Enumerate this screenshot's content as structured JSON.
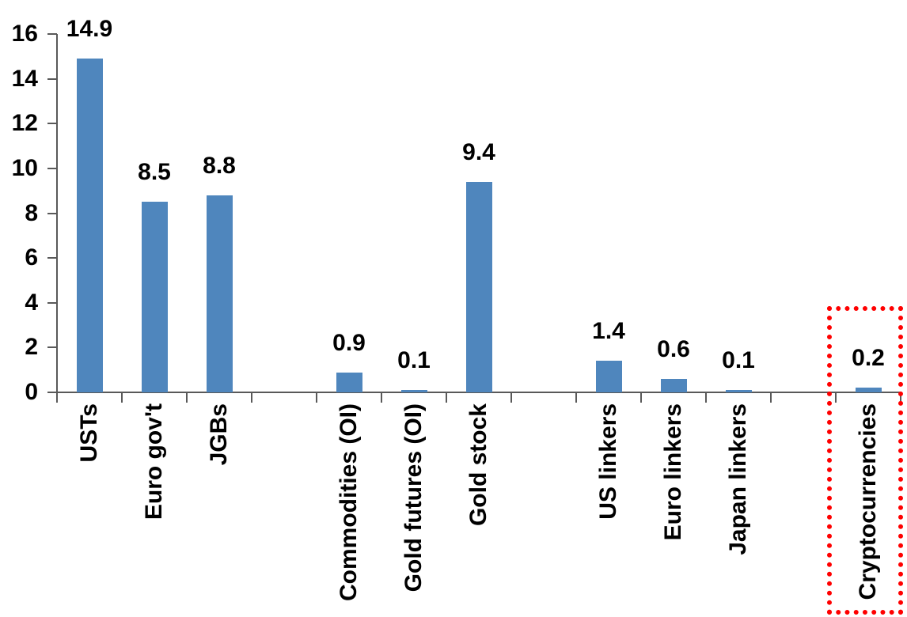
{
  "chart_data": {
    "type": "bar",
    "title": "",
    "xlabel": "",
    "ylabel": "",
    "categories": [
      "USTs",
      "Euro gov't",
      "JGBs",
      "",
      "Commodities (OI)",
      "Gold futures (OI)",
      "Gold stock",
      "",
      "US linkers",
      "Euro linkers",
      "Japan linkers",
      "",
      "Cryptocurrencies"
    ],
    "values": [
      14.9,
      8.5,
      8.8,
      null,
      0.9,
      0.1,
      9.4,
      null,
      1.4,
      0.6,
      0.1,
      null,
      0.2
    ],
    "value_labels": [
      "14.9",
      "8.5",
      "8.8",
      "",
      "0.9",
      "0.1",
      "9.4",
      "",
      "1.4",
      "0.6",
      "0.1",
      "",
      "0.2"
    ],
    "yticks": [
      "0",
      "2",
      "4",
      "6",
      "8",
      "10",
      "12",
      "14",
      "16"
    ],
    "ylim": [
      0,
      16
    ],
    "grid": false,
    "legend": false,
    "bar_color": "#4F86BD",
    "axis_color": "#595959",
    "label_color": "#000000",
    "highlight": {
      "category": "Cryptocurrencies",
      "style": "dotted-rectangle",
      "color": "#FF0000"
    }
  }
}
